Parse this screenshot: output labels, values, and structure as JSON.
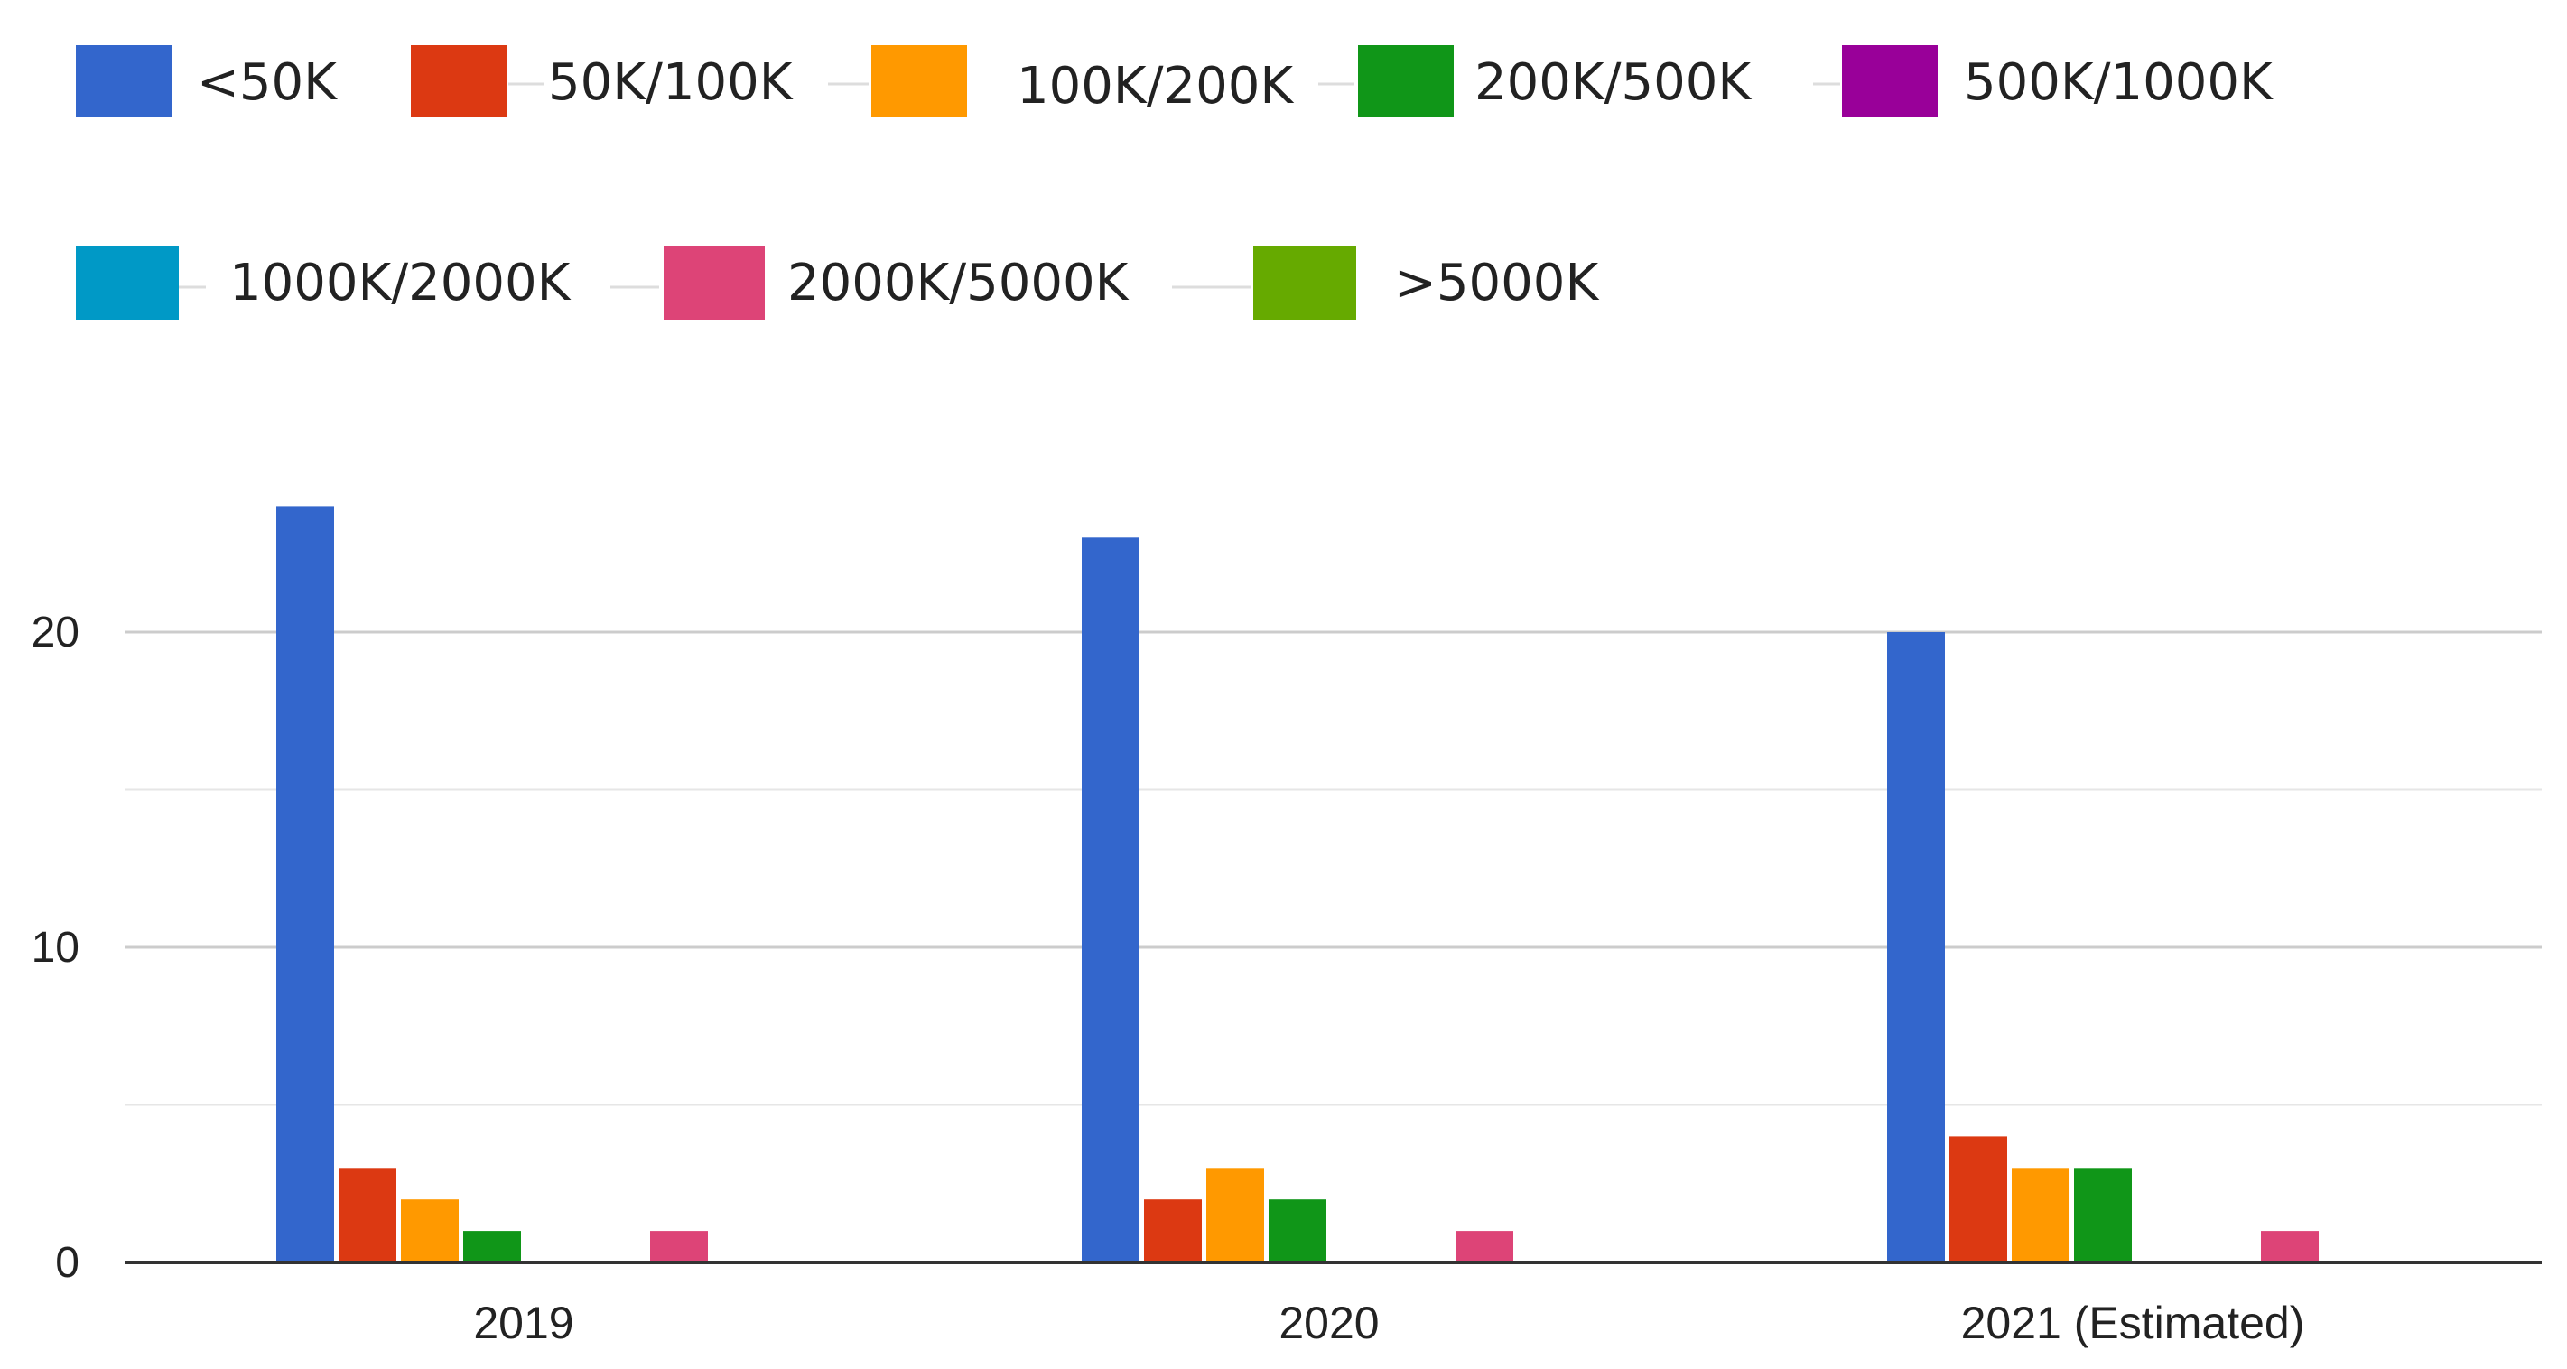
{
  "chart_data": {
    "type": "bar",
    "title": "",
    "xlabel": "",
    "ylabel": "",
    "categories": [
      "2019",
      "2020",
      "2021 (Estimated)"
    ],
    "ylim": [
      0,
      24
    ],
    "yticks": [
      0,
      10,
      20
    ],
    "grid": true,
    "legend_position": "top",
    "series": [
      {
        "name": "<50K",
        "color": "#3366cc",
        "values": [
          24,
          23,
          20
        ]
      },
      {
        "name": "50K/100K",
        "color": "#dc3912",
        "values": [
          3,
          2,
          4
        ]
      },
      {
        "name": "100K/200K",
        "color": "#ff9900",
        "values": [
          2,
          3,
          3
        ]
      },
      {
        "name": "200K/500K",
        "color": "#109618",
        "values": [
          1,
          2,
          3
        ]
      },
      {
        "name": "500K/1000K",
        "color": "#990099",
        "values": [
          0,
          0,
          0
        ]
      },
      {
        "name": "1000K/2000K",
        "color": "#0099c6",
        "values": [
          0,
          0,
          0
        ]
      },
      {
        "name": "2000K/5000K",
        "color": "#dd4477",
        "values": [
          1,
          1,
          1
        ]
      },
      {
        "name": ">5000K",
        "color": "#66aa00",
        "values": [
          0,
          0,
          0
        ]
      }
    ]
  }
}
